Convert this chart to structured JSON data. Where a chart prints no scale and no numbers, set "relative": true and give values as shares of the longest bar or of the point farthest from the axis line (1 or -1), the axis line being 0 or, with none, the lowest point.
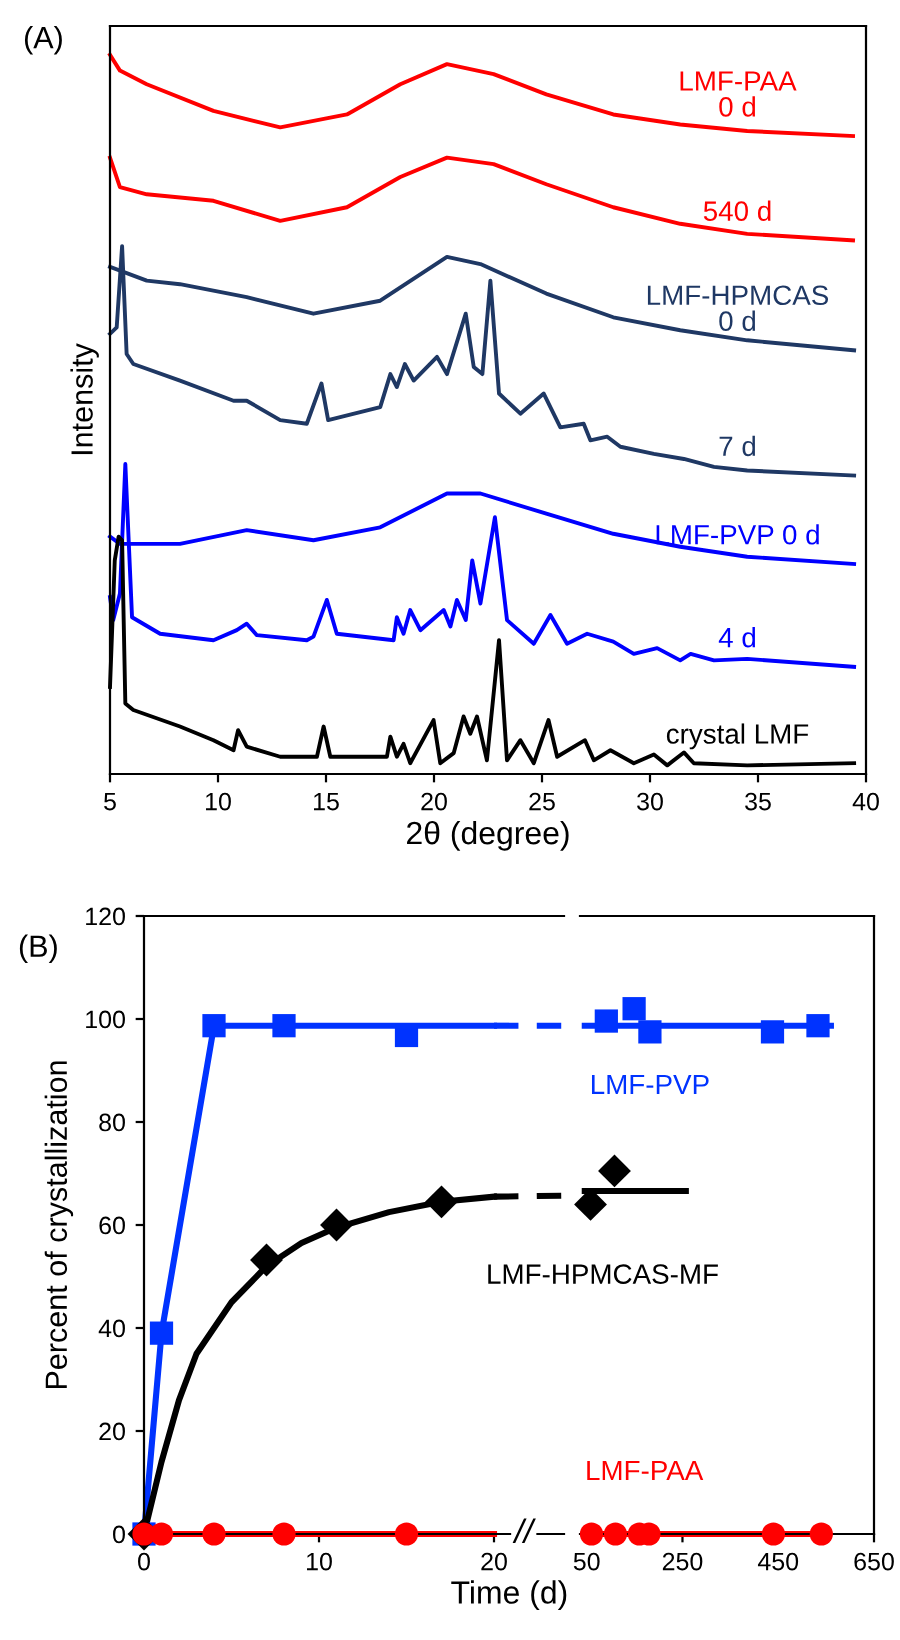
{
  "chart_data": [
    {
      "type": "line",
      "title": "(A)",
      "xlabel": "2θ (degree)",
      "ylabel": "Intensity",
      "relative": true,
      "xlim": [
        5,
        40
      ],
      "xticks": [
        5,
        10,
        15,
        20,
        25,
        30,
        35,
        40
      ],
      "marker": "none",
      "series": [
        {
          "name": "LMF-PAA\n0 d",
          "color": "#ff0000",
          "x": [
            5.0,
            5.46,
            6.7,
            9.79,
            12.88,
            15.97,
            18.44,
            20.6,
            22.76,
            25.2,
            28.3,
            31.4,
            34.5,
            39.4
          ],
          "values": [
            1.0,
            0.978,
            0.959,
            0.922,
            0.899,
            0.917,
            0.959,
            0.987,
            0.973,
            0.945,
            0.917,
            0.903,
            0.894,
            0.887
          ]
        },
        {
          "name": "540 d",
          "color": "#ff0000",
          "x": [
            5.0,
            5.46,
            6.7,
            9.79,
            12.88,
            15.97,
            18.44,
            20.6,
            22.76,
            25.2,
            28.3,
            31.4,
            34.5,
            39.4
          ],
          "values": [
            0.857,
            0.816,
            0.806,
            0.797,
            0.769,
            0.788,
            0.83,
            0.857,
            0.848,
            0.82,
            0.788,
            0.765,
            0.751,
            0.742
          ]
        },
        {
          "name": "LMF-HPMCAS\n0 d",
          "color": "#1f3864",
          "x": [
            5.0,
            6.7,
            8.24,
            11.33,
            14.42,
            17.51,
            20.6,
            22.15,
            25.2,
            28.3,
            31.4,
            34.5,
            39.45
          ],
          "values": [
            0.705,
            0.686,
            0.681,
            0.663,
            0.64,
            0.658,
            0.719,
            0.709,
            0.668,
            0.635,
            0.617,
            0.603,
            0.589
          ]
        },
        {
          "name": "7 d",
          "color": "#1f3864",
          "x": [
            5.0,
            5.31,
            5.56,
            5.77,
            6.08,
            8.24,
            10.72,
            11.33,
            12.88,
            14.11,
            14.79,
            15.1,
            17.51,
            17.98,
            18.28,
            18.65,
            19.06,
            20.14,
            20.6,
            21.47,
            21.84,
            22.24,
            22.61,
            23.01,
            24.0,
            25.08,
            25.85,
            26.93,
            27.24,
            28.02,
            28.63,
            30.18,
            31.57,
            32.96,
            34.5,
            39.45
          ],
          "values": [
            0.612,
            0.621,
            0.734,
            0.584,
            0.57,
            0.547,
            0.519,
            0.519,
            0.492,
            0.487,
            0.543,
            0.492,
            0.51,
            0.556,
            0.538,
            0.57,
            0.547,
            0.58,
            0.556,
            0.64,
            0.566,
            0.556,
            0.686,
            0.529,
            0.501,
            0.529,
            0.482,
            0.487,
            0.464,
            0.469,
            0.455,
            0.445,
            0.438,
            0.427,
            0.422,
            0.415
          ]
        },
        {
          "name": "LMF-PVP 0 d",
          "color": "#0000ff",
          "x": [
            5.0,
            5.46,
            8.24,
            11.33,
            14.42,
            17.51,
            20.6,
            22.15,
            25.2,
            28.3,
            31.4,
            34.5,
            39.45
          ],
          "values": [
            0.33,
            0.32,
            0.32,
            0.339,
            0.325,
            0.343,
            0.39,
            0.39,
            0.362,
            0.334,
            0.316,
            0.302,
            0.292
          ]
        },
        {
          "name": "4 d",
          "color": "#0000ff",
          "x": [
            5.0,
            5.15,
            5.46,
            5.71,
            6.02,
            7.32,
            9.79,
            10.87,
            11.33,
            11.8,
            14.11,
            14.42,
            15.04,
            15.5,
            18.13,
            18.28,
            18.59,
            18.9,
            19.37,
            20.45,
            20.76,
            21.06,
            21.47,
            21.77,
            22.15,
            22.82,
            23.38,
            24.62,
            25.39,
            26.16,
            27.09,
            28.3,
            29.25,
            30.33,
            31.4,
            31.88,
            32.96,
            34.5,
            39.45
          ],
          "values": [
            0.246,
            0.214,
            0.251,
            0.431,
            0.218,
            0.195,
            0.186,
            0.2,
            0.209,
            0.193,
            0.186,
            0.191,
            0.242,
            0.195,
            0.186,
            0.218,
            0.195,
            0.228,
            0.2,
            0.228,
            0.205,
            0.242,
            0.214,
            0.297,
            0.237,
            0.357,
            0.214,
            0.181,
            0.221,
            0.181,
            0.195,
            0.184,
            0.167,
            0.175,
            0.158,
            0.167,
            0.158,
            0.16,
            0.149
          ]
        },
        {
          "name": "crystal LMF",
          "color": "#000000",
          "x": [
            5.0,
            5.22,
            5.4,
            5.56,
            5.71,
            6.08,
            8.24,
            9.79,
            10.72,
            10.93,
            11.33,
            12.88,
            14.58,
            14.89,
            15.2,
            17.82,
            17.98,
            18.28,
            18.59,
            18.9,
            19.98,
            20.29,
            20.91,
            21.37,
            21.68,
            21.99,
            22.45,
            23.01,
            23.38,
            24.0,
            24.62,
            25.3,
            25.7,
            26.99,
            27.4,
            28.17,
            29.25,
            30.18,
            30.8,
            31.57,
            32.03,
            34.5,
            39.45
          ],
          "values": [
            0.121,
            0.297,
            0.33,
            0.325,
            0.098,
            0.089,
            0.066,
            0.047,
            0.033,
            0.061,
            0.038,
            0.024,
            0.024,
            0.066,
            0.024,
            0.024,
            0.052,
            0.024,
            0.042,
            0.015,
            0.075,
            0.015,
            0.029,
            0.08,
            0.056,
            0.08,
            0.019,
            0.186,
            0.019,
            0.047,
            0.015,
            0.075,
            0.024,
            0.047,
            0.019,
            0.033,
            0.015,
            0.027,
            0.012,
            0.03,
            0.015,
            0.012,
            0.015
          ]
        }
      ]
    },
    {
      "type": "scatter",
      "title": "(B)",
      "xlabel": "Time (d)",
      "ylabel": "Percent of crystallization",
      "xlim": [
        0,
        24
      ],
      "xticks": [
        0,
        10,
        20
      ],
      "ylim": [
        0,
        120
      ],
      "yticks": [
        0,
        20,
        40,
        60,
        80,
        100,
        120
      ],
      "annotations": [
        {
          "text": "//",
          "x": 21.7,
          "y": 0
        }
      ],
      "series": [
        {
          "type": "line",
          "color": "#0033ff",
          "line_style": "solid",
          "x": [
            0,
            1,
            4,
            20
          ],
          "values": [
            0,
            39,
            98.7,
            98.7
          ]
        },
        {
          "type": "line",
          "color": "#0033ff",
          "line_style": "dashed",
          "x": [
            20,
            24
          ],
          "values": [
            98.7,
            98.7
          ]
        },
        {
          "type": "line",
          "color": "#000000",
          "line_style": "solid",
          "x": [
            0,
            1,
            2,
            3,
            4,
            5,
            7,
            9,
            11,
            14,
            17,
            20
          ],
          "values": [
            0,
            14,
            26,
            35,
            40,
            45,
            52,
            56.5,
            59.5,
            62.5,
            64.5,
            65.5
          ]
        },
        {
          "type": "line",
          "color": "#000000",
          "line_style": "dashed",
          "x": [
            20,
            24
          ],
          "values": [
            65.5,
            65.7
          ]
        },
        {
          "type": "line",
          "color": "#ff0000",
          "line_style": "solid",
          "x": [
            0,
            20
          ],
          "values": [
            0,
            0
          ]
        },
        {
          "type": "scatter",
          "color": "#0033ff",
          "marker": "square",
          "x": [
            0,
            1,
            4,
            8,
            15
          ],
          "values": [
            0,
            39,
            98.7,
            98.7,
            96.8
          ]
        },
        {
          "type": "scatter",
          "color": "#000000",
          "marker": "diamond",
          "x": [
            0,
            7,
            11,
            17
          ],
          "values": [
            0,
            53.2,
            60,
            64.5
          ]
        },
        {
          "type": "scatter",
          "color": "#ff0000",
          "marker": "circle",
          "x": [
            0,
            1,
            4,
            8,
            15
          ],
          "values": [
            0,
            0,
            0,
            0,
            0
          ]
        }
      ]
    },
    {
      "type": "scatter",
      "tick_labels": "x",
      "xlim": [
        36,
        650
      ],
      "xticks": [
        50,
        250,
        450,
        650
      ],
      "ylim": [
        0,
        120
      ],
      "yticks": [
        0,
        20,
        40,
        60,
        80,
        100,
        120
      ],
      "series": [
        {
          "type": "line",
          "color": "#0033ff",
          "line_style": "solid",
          "x": [
            46,
            560
          ],
          "values": [
            98.7,
            98.7
          ]
        },
        {
          "type": "line",
          "color": "#000000",
          "line_style": "solid",
          "x": [
            46,
            257
          ],
          "values": [
            66.6,
            66.6
          ]
        },
        {
          "type": "line",
          "color": "#ff0000",
          "line_style": "solid",
          "x": [
            44,
            540
          ],
          "values": [
            0,
            0
          ]
        },
        {
          "type": "scatter",
          "name": "LMF-PVP",
          "color": "#0033ff",
          "marker": "square",
          "x": [
            91,
            149,
            182,
            438,
            533
          ],
          "values": [
            99.6,
            102,
            97.5,
            97.5,
            98.7
          ]
        },
        {
          "type": "scatter",
          "name": "LMF-HPMCAS-MF",
          "color": "#000000",
          "marker": "diamond",
          "x": [
            58,
            108
          ],
          "values": [
            64,
            70.5
          ]
        },
        {
          "type": "scatter",
          "name": "LMF-PAA",
          "color": "#ff0000",
          "marker": "circle",
          "x": [
            60,
            110,
            160,
            180,
            440,
            540
          ],
          "values": [
            0,
            0,
            0,
            0,
            0,
            0
          ]
        }
      ]
    }
  ]
}
